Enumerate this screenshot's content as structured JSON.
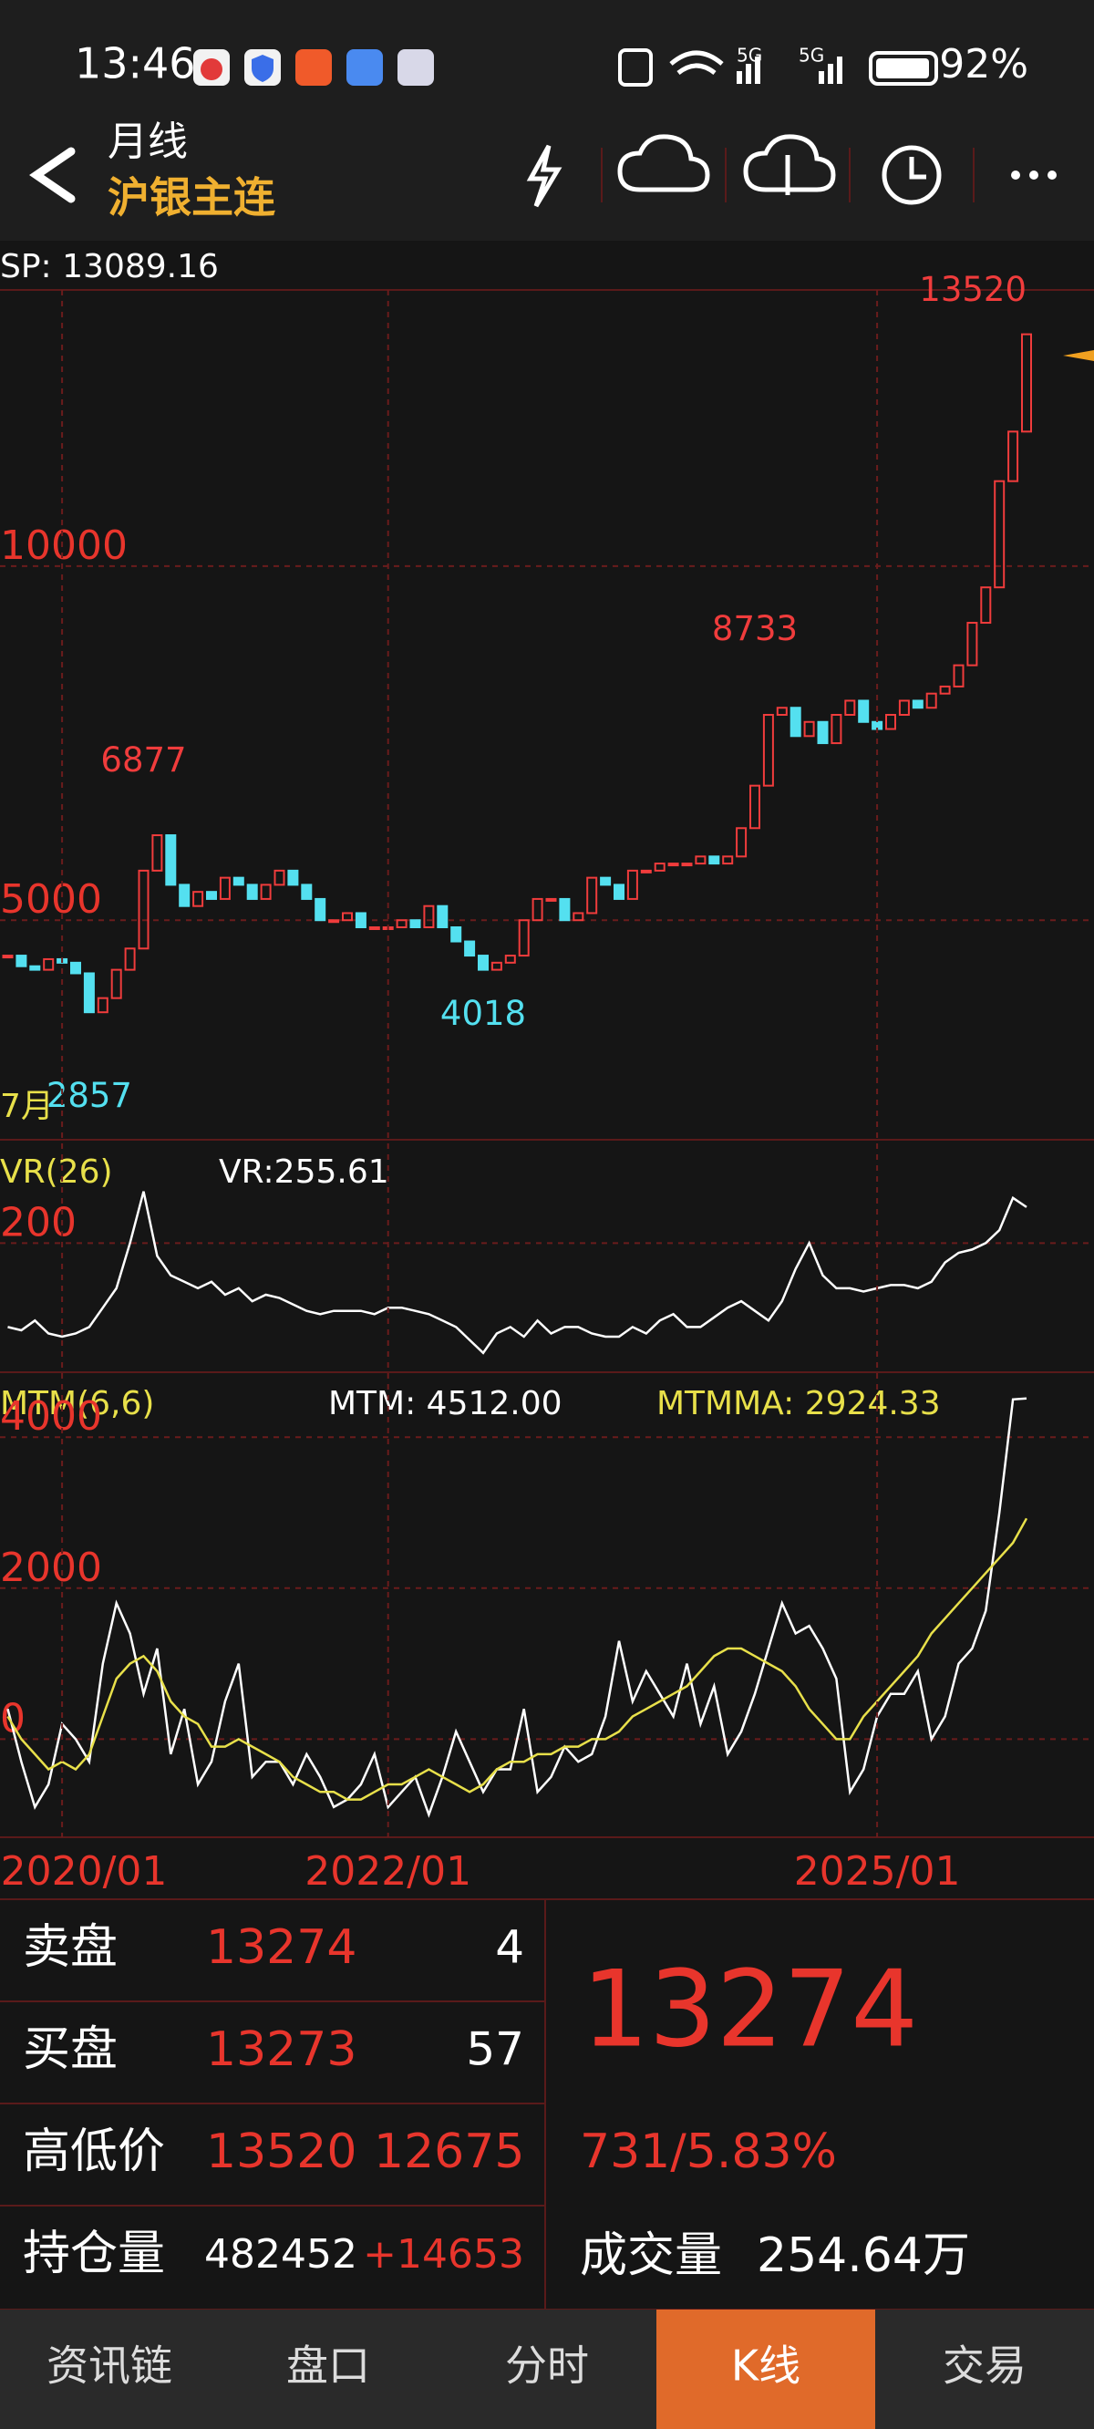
{
  "status_bar": {
    "time": "13:46",
    "network": [
      "5G",
      "5G"
    ],
    "battery": "92%"
  },
  "header": {
    "period": "月线",
    "symbol": "沪银主连"
  },
  "chart_data": [
    {
      "type": "candlestick",
      "label": "SP: 13089.16",
      "ylim": [
        1900,
        13900
      ],
      "yticks": [
        10000,
        5000
      ],
      "grid": true,
      "up_color": "#f03c3c",
      "down_color": "#54e0f0",
      "close": [
        4500,
        4350,
        4300,
        4450,
        4400,
        4250,
        3700,
        3900,
        4300,
        4600,
        5700,
        6200,
        5500,
        5200,
        5400,
        5300,
        5600,
        5500,
        5300,
        5500,
        5700,
        5500,
        5300,
        5000,
        5000,
        5100,
        4900,
        4900,
        4900,
        5000,
        4900,
        5200,
        4900,
        4700,
        4500,
        4300,
        4400,
        4500,
        5000,
        5300,
        5300,
        5000,
        5100,
        5600,
        5500,
        5300,
        5700,
        5700,
        5800,
        5800,
        5800,
        5900,
        5800,
        5900,
        6300,
        6900,
        7900,
        8000,
        7600,
        7800,
        7500,
        7900,
        8100,
        7800,
        7700,
        7900,
        8100,
        8000,
        8200,
        8300,
        8600,
        9200,
        9700,
        11200,
        11900,
        13274
      ],
      "annotations": [
        {
          "value": 13520,
          "x": 75,
          "position": "above",
          "color": "#f03c3c"
        },
        {
          "value": 8733,
          "x": 55,
          "position": "above",
          "color": "#f03c3c"
        },
        {
          "value": 6877,
          "x": 10,
          "position": "above",
          "color": "#f03c3c"
        },
        {
          "value": 4018,
          "x": 35,
          "position": "below",
          "color": "#54e0f0"
        },
        {
          "value": 2857,
          "x": 6,
          "position": "below",
          "color": "#54e0f0"
        }
      ],
      "start_label": "7月"
    },
    {
      "type": "line",
      "label": "VR(26)",
      "value_label": "VR:255.61",
      "ylim": [
        0,
        360
      ],
      "yticks": [
        200
      ],
      "color": "#ffffff",
      "values": [
        70,
        65,
        80,
        60,
        55,
        60,
        70,
        100,
        130,
        200,
        280,
        180,
        150,
        140,
        130,
        140,
        120,
        130,
        110,
        120,
        115,
        105,
        95,
        90,
        95,
        95,
        95,
        90,
        100,
        100,
        95,
        90,
        80,
        70,
        50,
        30,
        60,
        70,
        55,
        80,
        60,
        70,
        70,
        60,
        55,
        55,
        70,
        60,
        80,
        90,
        70,
        70,
        85,
        100,
        110,
        95,
        80,
        110,
        160,
        200,
        150,
        130,
        130,
        125,
        130,
        135,
        135,
        130,
        140,
        170,
        185,
        190,
        200,
        220,
        270,
        255.61
      ]
    },
    {
      "type": "line",
      "label": "MTM(6,6)",
      "ylim": [
        -1300,
        4860
      ],
      "yticks": [
        4000,
        2000,
        0
      ],
      "xticks": [
        {
          "value": 4,
          "label": "2020/01"
        },
        {
          "value": 28,
          "label": "2022/01"
        },
        {
          "value": 64,
          "label": "2025/01"
        }
      ],
      "series": [
        {
          "name": "MTM: 4512.00",
          "color": "#ffffff",
          "values": [
            400,
            -300,
            -900,
            -600,
            200,
            0,
            -300,
            1000,
            1800,
            1400,
            600,
            1200,
            -200,
            400,
            -600,
            -300,
            500,
            1000,
            -500,
            -300,
            -300,
            -600,
            -200,
            -500,
            -900,
            -800,
            -600,
            -200,
            -900,
            -700,
            -500,
            -1000,
            -500,
            100,
            -300,
            -700,
            -400,
            -400,
            400,
            -700,
            -500,
            -100,
            -300,
            -200,
            300,
            1300,
            500,
            900,
            600,
            300,
            1000,
            200,
            700,
            -200,
            100,
            600,
            1200,
            1800,
            1400,
            1500,
            1200,
            800,
            -700,
            -400,
            300,
            600,
            600,
            900,
            0,
            300,
            1000,
            1200,
            1700,
            3000,
            4500,
            4512
          ]
        },
        {
          "name": "MTMMA: 2924.33",
          "color": "#e8e04a",
          "values": [
            300,
            0,
            -200,
            -400,
            -300,
            -400,
            -200,
            300,
            800,
            1000,
            1100,
            900,
            500,
            300,
            200,
            -100,
            -100,
            0,
            -100,
            -200,
            -300,
            -500,
            -600,
            -700,
            -700,
            -800,
            -800,
            -700,
            -600,
            -600,
            -500,
            -400,
            -500,
            -600,
            -700,
            -600,
            -400,
            -300,
            -300,
            -200,
            -200,
            -100,
            -100,
            0,
            0,
            100,
            300,
            400,
            500,
            600,
            700,
            900,
            1100,
            1200,
            1200,
            1100,
            1000,
            900,
            700,
            400,
            200,
            0,
            0,
            300,
            500,
            700,
            900,
            1100,
            1400,
            1600,
            1800,
            2000,
            2200,
            2400,
            2600,
            2924.33
          ]
        }
      ]
    }
  ],
  "quote": {
    "rows": [
      {
        "label": "卖盘",
        "price": 13274,
        "qty": 4
      },
      {
        "label": "买盘",
        "price": 13273,
        "qty": 57
      },
      {
        "label": "高低价",
        "high": 13520,
        "low": 12675
      },
      {
        "label": "持仓量",
        "open_interest": 482452,
        "change": "+14653"
      }
    ],
    "last": 13274,
    "change": "731/5.83%",
    "volume_label": "成交量",
    "volume": "254.64万"
  },
  "nav": [
    "资讯链",
    "盘口",
    "分时",
    "K线",
    "交易"
  ]
}
